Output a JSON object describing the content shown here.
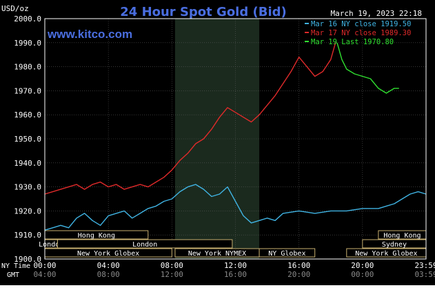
{
  "title": "24 Hour Spot Gold (Bid)",
  "unit_label": "USD/oz",
  "date_label": "March 19, 2023 22:18",
  "site_label": "www.kitco.com",
  "colors": {
    "background": "#000000",
    "frame": "#ffffff",
    "title": "#4a6ee0",
    "site": "#4a6ee0",
    "session_band": "#1b2a1e",
    "grid": "#5a5a5a",
    "mar16": "#40b4e4",
    "mar17": "#e02a2a",
    "mar19": "#30e030",
    "market_bar_fill": "#000000",
    "market_bar_border": "#c8b070",
    "market_text": "#ffffff"
  },
  "legend": [
    {
      "text": "Mar 16 NY close 1919.50",
      "color": "#40b4e4"
    },
    {
      "text": "Mar 17 NY close 1989.30",
      "color": "#e02a2a"
    },
    {
      "text": "Mar 19 Last 1970.80",
      "color": "#30e030"
    }
  ],
  "markets": [
    {
      "label": "Hong Kong",
      "start": 0.0,
      "end": 6.5,
      "row": 0
    },
    {
      "label": "Hong Kong",
      "start": 21.0,
      "end": 24.0,
      "row": 0
    },
    {
      "label": "London",
      "start": 0.0,
      "end": 0.8,
      "row": 1
    },
    {
      "label": "London",
      "start": 0.8,
      "end": 11.8,
      "row": 1
    },
    {
      "label": "Sydney",
      "start": 20.0,
      "end": 24.0,
      "row": 1
    },
    {
      "label": "New York Globex",
      "start": 0.0,
      "end": 8.0,
      "row": 2
    },
    {
      "label": "New York NYMEX",
      "start": 8.2,
      "end": 13.5,
      "row": 2
    },
    {
      "label": "NY Globex",
      "start": 13.5,
      "end": 17.0,
      "row": 2
    },
    {
      "label": "New York Globex",
      "start": 19.0,
      "end": 24.0,
      "row": 2
    }
  ],
  "time_axis": {
    "ny_label": "NY Time",
    "gmt_label": "GMT",
    "ny_ticks": [
      "00:00",
      "04:00",
      "08:00",
      "12:00",
      "16:00",
      "20:00",
      "23:59"
    ],
    "gmt_ticks": [
      "04:00",
      "08:00",
      "12:00",
      "16:00",
      "20:00",
      "00:00",
      "03:59"
    ]
  },
  "chart_data": {
    "type": "line",
    "title": "24 Hour Spot Gold (Bid)",
    "ylabel": "USD/oz",
    "xlabel": "NY Time",
    "xlim": [
      0,
      24
    ],
    "ylim": [
      1900,
      2000
    ],
    "y_ticks": [
      "2000.0",
      "1990.0",
      "1980.0",
      "1970.0",
      "1960.0",
      "1950.0",
      "1940.0",
      "1930.0",
      "1920.0",
      "1910.0",
      "1900.0"
    ],
    "y_tick_values": [
      2000,
      1990,
      1980,
      1970,
      1960,
      1950,
      1940,
      1930,
      1920,
      1910,
      1900
    ],
    "highlight_band": [
      8.2,
      13.5
    ],
    "grid": true,
    "legend_position": "top-right",
    "series": [
      {
        "name": "Mar 16 NY close 1919.50",
        "color": "#40b4e4",
        "points": [
          [
            0,
            1912
          ],
          [
            0.5,
            1913
          ],
          [
            1,
            1914
          ],
          [
            1.5,
            1913
          ],
          [
            2,
            1917
          ],
          [
            2.5,
            1919
          ],
          [
            3,
            1916
          ],
          [
            3.5,
            1914
          ],
          [
            4,
            1918
          ],
          [
            4.5,
            1919
          ],
          [
            5,
            1920
          ],
          [
            5.5,
            1917
          ],
          [
            6,
            1919
          ],
          [
            6.5,
            1921
          ],
          [
            7,
            1922
          ],
          [
            7.5,
            1924
          ],
          [
            8,
            1925
          ],
          [
            8.5,
            1928
          ],
          [
            9,
            1930
          ],
          [
            9.5,
            1931
          ],
          [
            10,
            1929
          ],
          [
            10.5,
            1926
          ],
          [
            11,
            1927
          ],
          [
            11.5,
            1930
          ],
          [
            12,
            1924
          ],
          [
            12.5,
            1918
          ],
          [
            13,
            1915
          ],
          [
            13.5,
            1916
          ],
          [
            14,
            1917
          ],
          [
            14.5,
            1916
          ],
          [
            15,
            1919
          ],
          [
            16,
            1920
          ],
          [
            17,
            1919
          ],
          [
            18,
            1920
          ],
          [
            19,
            1920
          ],
          [
            20,
            1921
          ],
          [
            21,
            1921
          ],
          [
            21.5,
            1922
          ],
          [
            22,
            1923
          ],
          [
            22.5,
            1925
          ],
          [
            23,
            1927
          ],
          [
            23.5,
            1928
          ],
          [
            24,
            1927
          ]
        ]
      },
      {
        "name": "Mar 17 NY close 1989.30",
        "color": "#e02a2a",
        "points": [
          [
            0,
            1927
          ],
          [
            0.5,
            1928
          ],
          [
            1,
            1929
          ],
          [
            1.5,
            1930
          ],
          [
            2,
            1931
          ],
          [
            2.5,
            1929
          ],
          [
            3,
            1931
          ],
          [
            3.5,
            1932
          ],
          [
            4,
            1930
          ],
          [
            4.5,
            1931
          ],
          [
            5,
            1929
          ],
          [
            5.5,
            1930
          ],
          [
            6,
            1931
          ],
          [
            6.5,
            1930
          ],
          [
            7,
            1932
          ],
          [
            7.5,
            1934
          ],
          [
            8,
            1937
          ],
          [
            8.5,
            1941
          ],
          [
            9,
            1944
          ],
          [
            9.5,
            1948
          ],
          [
            10,
            1950
          ],
          [
            10.5,
            1954
          ],
          [
            11,
            1959
          ],
          [
            11.5,
            1963
          ],
          [
            12,
            1961
          ],
          [
            12.5,
            1959
          ],
          [
            13,
            1957
          ],
          [
            13.5,
            1960
          ],
          [
            14,
            1964
          ],
          [
            14.5,
            1968
          ],
          [
            15,
            1973
          ],
          [
            15.5,
            1978
          ],
          [
            16,
            1984
          ],
          [
            16.5,
            1980
          ],
          [
            17,
            1976
          ],
          [
            17.5,
            1978
          ],
          [
            18,
            1983
          ],
          [
            18.3,
            1990
          ]
        ]
      },
      {
        "name": "Mar 19 Last 1970.80",
        "color": "#30e030",
        "points": [
          [
            18.4,
            1990
          ],
          [
            18.7,
            1983
          ],
          [
            19,
            1979
          ],
          [
            19.5,
            1977
          ],
          [
            20,
            1976
          ],
          [
            20.5,
            1975
          ],
          [
            21,
            1971
          ],
          [
            21.5,
            1969
          ],
          [
            22,
            1971
          ],
          [
            22.3,
            1971
          ]
        ]
      }
    ]
  }
}
